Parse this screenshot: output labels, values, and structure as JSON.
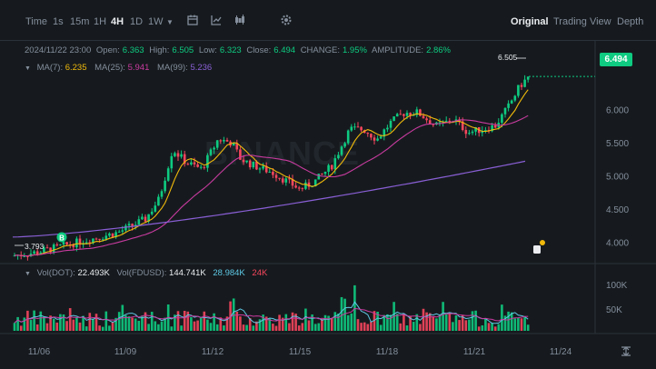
{
  "toolbar": {
    "time_label": "Time",
    "intervals": [
      {
        "label": "1s",
        "active": false
      },
      {
        "label": "15m",
        "active": false
      },
      {
        "label": "1H",
        "active": false
      },
      {
        "label": "4H",
        "active": true
      },
      {
        "label": "1D",
        "active": false
      },
      {
        "label": "1W",
        "active": false
      }
    ],
    "icons": [
      "calendar-icon",
      "indicator-icon",
      "candle-type-icon",
      "settings-icon"
    ],
    "views": [
      {
        "label": "Original",
        "active": true
      },
      {
        "label": "Trading View",
        "active": false
      },
      {
        "label": "Depth",
        "active": false
      }
    ]
  },
  "ohlc": {
    "datetime": "2024/11/22 23:00",
    "open_label": "Open:",
    "open": "6.363",
    "high_label": "High:",
    "high": "6.505",
    "low_label": "Low:",
    "low": "6.323",
    "close_label": "Close:",
    "close": "6.494",
    "change_label": "CHANGE:",
    "change": "1.95%",
    "amplitude_label": "AMPLITUDE:",
    "amplitude": "2.86%"
  },
  "ma": {
    "ma7_label": "MA(7):",
    "ma7": "6.235",
    "ma25_label": "MA(25):",
    "ma25": "5.941",
    "ma99_label": "MA(99):",
    "ma99": "5.236"
  },
  "volume": {
    "vol_label": "Vol(DOT):",
    "vol": "22.493K",
    "fdusd_label": "Vol(FDUSD):",
    "fdusd": "144.741K",
    "v1": "28.984K",
    "v2": "24K"
  },
  "price_axis": [
    "6.000",
    "5.500",
    "5.000",
    "4.500",
    "4.000"
  ],
  "volume_axis": [
    "100K",
    "50K"
  ],
  "date_axis": [
    "11/06",
    "11/09",
    "11/12",
    "11/15",
    "11/18",
    "11/21",
    "11/24"
  ],
  "current_price": "6.494",
  "high_marker": "6.505",
  "low_marker": "3.793",
  "buy_marker": "B",
  "watermark": "BINANCE",
  "colors": {
    "up": "#0ecb81",
    "down": "#f6465d",
    "ma7": "#f0b90b",
    "ma25": "#c93ba0",
    "ma99": "#8a5fd6"
  }
}
